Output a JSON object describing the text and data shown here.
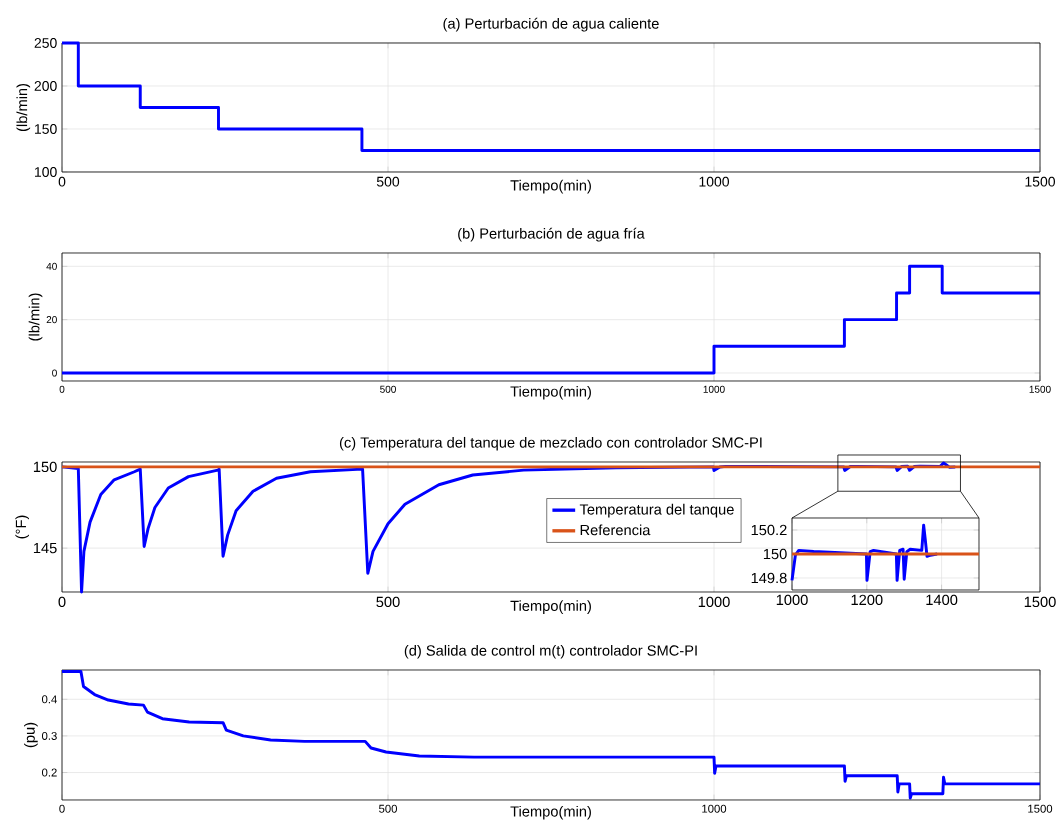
{
  "chart_data": [
    {
      "type": "step",
      "title": "(a) Perturbación de agua caliente",
      "xlabel": "Tiempo(min)",
      "ylabel": "(lb/min)",
      "x": [
        0,
        25,
        120,
        240,
        460,
        1500
      ],
      "series": [
        {
          "color": "#0000ff",
          "values": [
            250,
            200,
            175,
            150,
            125,
            125
          ]
        }
      ],
      "xlim": [
        0,
        1500
      ],
      "ylim": [
        100,
        250
      ],
      "xticks": [
        0,
        500,
        1000,
        1500
      ],
      "yticks": [
        100,
        150,
        200,
        250
      ],
      "grid": true
    },
    {
      "type": "step",
      "title": "(b) Perturbación de agua fría",
      "xlabel": "Tiempo(min)",
      "ylabel": "(lb/min)",
      "x": [
        0,
        1000,
        1200,
        1280,
        1300,
        1350,
        1500
      ],
      "series": [
        {
          "color": "#0000ff",
          "values": [
            0,
            10,
            20,
            30,
            40,
            30,
            30
          ]
        }
      ],
      "xlim": [
        0,
        1500
      ],
      "ylim": [
        -3,
        45
      ],
      "xticks": [
        0,
        500,
        1000,
        1500
      ],
      "yticks": [
        0,
        20,
        40
      ],
      "grid": true
    },
    {
      "type": "line",
      "title": "(c) Temperatura del tanque de mezclado con controlador SMC-PI",
      "xlabel": "Tiempo(min)",
      "ylabel": "(°F)",
      "series": [
        {
          "name": "Temperatura del tanque",
          "color": "#0000ff",
          "x": [
            0,
            25,
            30,
            33.6,
            43,
            59.5,
            80,
            111,
            120,
            126,
            132,
            142.5,
            163,
            194,
            239,
            241,
            247,
            254,
            267,
            293,
            329,
            381,
            460,
            461,
            469,
            477,
            500,
            526,
            578,
            630,
            708,
            850,
            999,
            1000,
            1009,
            1018,
            1058,
            1199,
            1200.5,
            1209,
            1218,
            1279,
            1281,
            1288,
            1297,
            1300,
            1307,
            1316,
            1347,
            1352,
            1356,
            1361,
            1370
          ],
          "values": [
            150,
            149.9,
            142.3,
            144.8,
            146.6,
            148.3,
            149.2,
            149.7,
            149.86,
            145.1,
            146.2,
            147.5,
            148.7,
            149.4,
            149.8,
            149.86,
            144.5,
            145.8,
            147.3,
            148.5,
            149.3,
            149.7,
            149.86,
            149.86,
            143.45,
            144.8,
            146.5,
            147.7,
            148.9,
            149.5,
            149.8,
            149.95,
            150,
            149.78,
            149.99,
            150.03,
            150.02,
            150,
            149.78,
            150.02,
            150.03,
            150,
            149.78,
            150.03,
            150.04,
            149.79,
            150.02,
            150.04,
            150.03,
            150.24,
            150.13,
            149.98,
            149.99
          ]
        },
        {
          "name": "Referencia",
          "color": "#d95319",
          "x": [
            0,
            1500
          ],
          "values": [
            150,
            150
          ]
        }
      ],
      "xlim": [
        0,
        1500
      ],
      "ylim": [
        142.3,
        150.3
      ],
      "xticks": [
        0,
        500,
        1000,
        1500
      ],
      "yticks": [
        145,
        150
      ],
      "grid": true,
      "legend": "center"
    },
    {
      "type": "line",
      "series": [
        {
          "color": "#0000ff",
          "x": [
            1000,
            1009,
            1018,
            1058,
            1199,
            1200.5,
            1209,
            1218,
            1279,
            1281,
            1288,
            1297,
            1300,
            1307,
            1316,
            1347,
            1352,
            1356,
            1361,
            1370,
            1388
          ],
          "values": [
            149.78,
            149.99,
            150.03,
            150.02,
            150,
            149.78,
            150.02,
            150.03,
            150,
            149.78,
            150.03,
            150.04,
            149.79,
            150.02,
            150.04,
            150.03,
            150.24,
            150.13,
            149.98,
            149.99,
            150
          ]
        },
        {
          "color": "#d95319",
          "x": [
            1000,
            1500
          ],
          "values": [
            150,
            150
          ]
        }
      ],
      "xlim": [
        1000,
        1500
      ],
      "ylim": [
        149.7,
        150.3
      ],
      "xticks": [
        1000,
        1200,
        1400
      ],
      "yticks": [
        149.8,
        150,
        150.2
      ],
      "grid": true
    },
    {
      "type": "line",
      "title": "(d) Salida de control m(t) controlador SMC-PI",
      "xlabel": "Tiempo(min)",
      "ylabel": "(pu)",
      "x": [
        0,
        29,
        33,
        50,
        71,
        102,
        125,
        131,
        154,
        195,
        247,
        252,
        278,
        320,
        372,
        465,
        474,
        497,
        548,
        632,
        1000,
        1001,
        1003,
        1200,
        1201,
        1203,
        1281,
        1282,
        1284,
        1300,
        1301,
        1303,
        1351,
        1352,
        1354,
        1500
      ],
      "series": [
        {
          "color": "#0000ff",
          "values": [
            0.476,
            0.476,
            0.435,
            0.413,
            0.398,
            0.387,
            0.384,
            0.365,
            0.347,
            0.338,
            0.336,
            0.316,
            0.3,
            0.289,
            0.285,
            0.285,
            0.267,
            0.256,
            0.245,
            0.242,
            0.242,
            0.198,
            0.218,
            0.218,
            0.176,
            0.191,
            0.191,
            0.147,
            0.169,
            0.169,
            0.13,
            0.142,
            0.142,
            0.187,
            0.169,
            0.169
          ]
        }
      ],
      "xlim": [
        0,
        1500
      ],
      "ylim": [
        0.125,
        0.48
      ],
      "xticks": [
        0,
        500,
        1000,
        1500
      ],
      "yticks": [
        0.2,
        0.3,
        0.4
      ],
      "grid": true
    }
  ]
}
